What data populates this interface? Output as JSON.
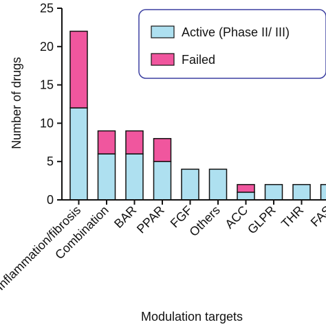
{
  "chart_data": {
    "type": "bar",
    "stacked": true,
    "categories": [
      "Inflammation/fibrosis",
      "Combination",
      "BAR",
      "PPAR",
      "FGF",
      "Others",
      "ACC",
      "GLPR",
      "THR",
      "FAS"
    ],
    "series": [
      {
        "name": "Active (Phase II/ III)",
        "color": "#aee0f0",
        "values": [
          12,
          6,
          6,
          5,
          4,
          4,
          1,
          2,
          2,
          2
        ]
      },
      {
        "name": "Failed",
        "color": "#f0569e",
        "values": [
          10,
          3,
          3,
          3,
          0,
          0,
          1,
          0,
          0,
          0
        ]
      }
    ],
    "xlabel": "Modulation targets",
    "ylabel": "Number of drugs",
    "ylim": [
      0,
      25
    ],
    "yticks": [
      "0",
      "5",
      "10",
      "15",
      "20",
      "25"
    ],
    "legend_placement": "top-right",
    "grid": false
  }
}
